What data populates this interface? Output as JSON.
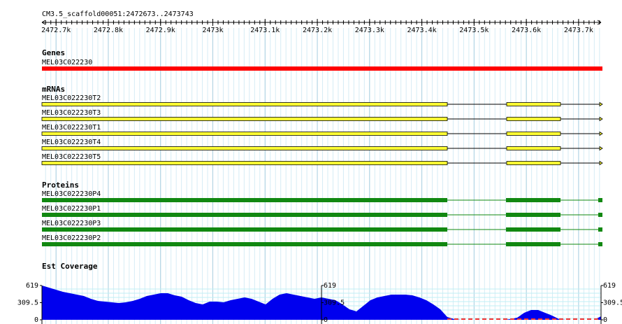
{
  "header": {
    "title": "CM3.5_scaffold00051:2472673..2473743"
  },
  "ruler": {
    "ticks": [
      "2472.7k",
      "2472.8k",
      "2472.9k",
      "2473k",
      "2473.1k",
      "2473.2k",
      "2473.3k",
      "2473.4k",
      "2473.5k",
      "2473.6k",
      "2473.7k"
    ]
  },
  "genes": {
    "label": "Genes",
    "items": [
      "MEL03C022230"
    ]
  },
  "mrnas": {
    "label": "mRNAs",
    "items": [
      "MEL03C022230T2",
      "MEL03C022230T3",
      "MEL03C022230T1",
      "MEL03C022230T4",
      "MEL03C022230T5"
    ]
  },
  "proteins": {
    "label": "Proteins",
    "items": [
      "MEL03C022230P4",
      "MEL03C022230P1",
      "MEL03C022230P3",
      "MEL03C022230P2"
    ]
  },
  "coverage": {
    "label": "Est Coverage",
    "ylim": [
      0,
      619
    ],
    "yticks": [
      0,
      309.5,
      619
    ],
    "values": [
      619,
      581,
      543,
      505,
      480,
      455,
      429,
      379,
      341,
      328,
      316,
      303,
      316,
      341,
      379,
      429,
      455,
      480,
      480,
      442,
      417,
      354,
      303,
      278,
      328,
      328,
      316,
      354,
      379,
      404,
      379,
      328,
      278,
      379,
      455,
      480,
      455,
      429,
      404,
      379,
      404,
      379,
      354,
      278,
      189,
      152,
      253,
      354,
      404,
      429,
      455,
      455,
      455,
      442,
      404,
      354,
      278,
      189,
      51,
      13,
      0,
      0,
      0,
      0,
      0,
      0,
      0,
      13,
      38,
      126,
      177,
      177,
      126,
      76,
      13,
      0,
      0,
      0,
      0,
      0,
      63
    ]
  }
}
